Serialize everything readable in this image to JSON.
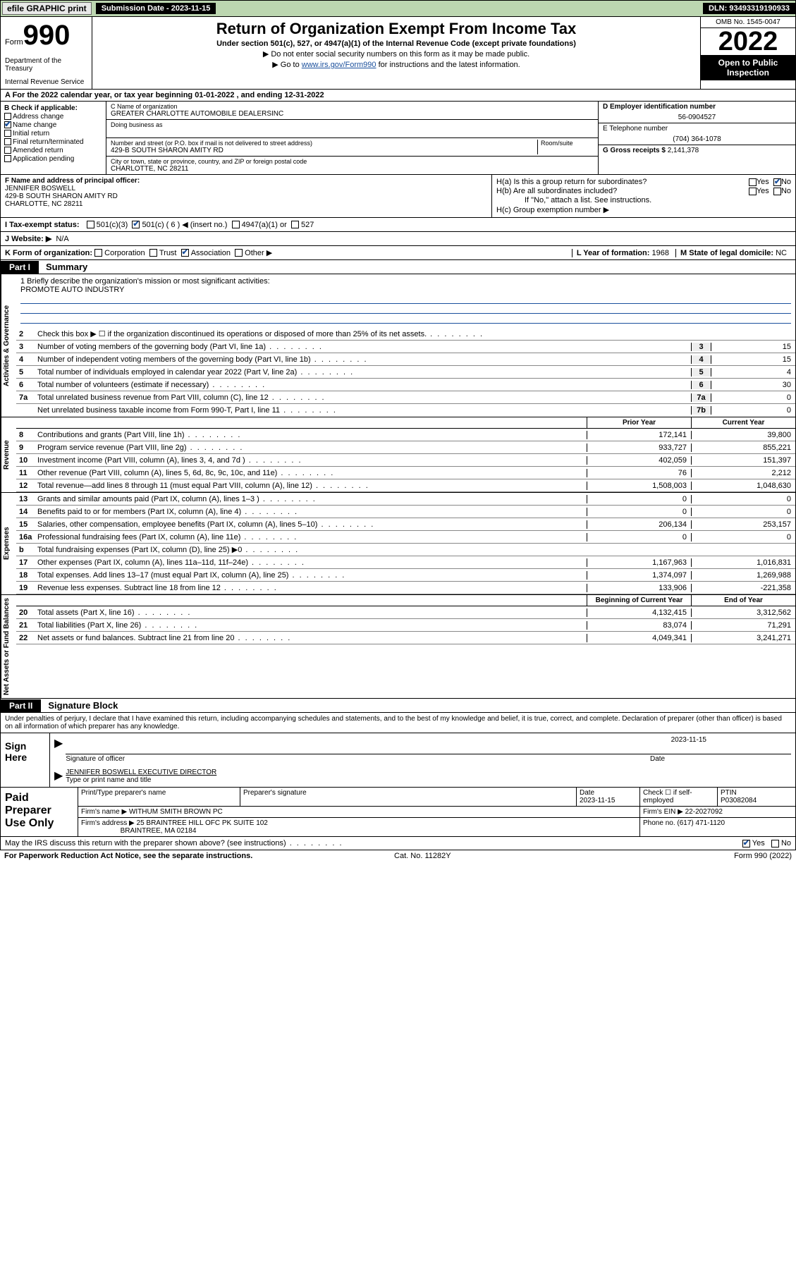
{
  "topbar": {
    "efile": "efile GRAPHIC print",
    "submission_label": "Submission Date - 2023-11-15",
    "dln": "DLN: 93493319190933"
  },
  "header": {
    "form_prefix": "Form",
    "form_num": "990",
    "dept": "Department of the Treasury",
    "irs": "Internal Revenue Service",
    "title": "Return of Organization Exempt From Income Tax",
    "sub1": "Under section 501(c), 527, or 4947(a)(1) of the Internal Revenue Code (except private foundations)",
    "sub2": "▶ Do not enter social security numbers on this form as it may be made public.",
    "sub3_pre": "▶ Go to ",
    "sub3_link": "www.irs.gov/Form990",
    "sub3_post": " for instructions and the latest information.",
    "omb": "OMB No. 1545-0047",
    "year": "2022",
    "open": "Open to Public Inspection"
  },
  "period": "A For the 2022 calendar year, or tax year beginning 01-01-2022   , and ending 12-31-2022",
  "boxB": {
    "label": "B Check if applicable:",
    "addr": "Address change",
    "name": "Name change",
    "init": "Initial return",
    "final": "Final return/terminated",
    "amend": "Amended return",
    "app": "Application pending"
  },
  "boxC": {
    "name_lbl": "C Name of organization",
    "name": "GREATER CHARLOTTE AUTOMOBILE DEALERSINC",
    "dba_lbl": "Doing business as",
    "street_lbl": "Number and street (or P.O. box if mail is not delivered to street address)",
    "room_lbl": "Room/suite",
    "street": "429-B SOUTH SHARON AMITY RD",
    "city_lbl": "City or town, state or province, country, and ZIP or foreign postal code",
    "city": "CHARLOTTE, NC  28211"
  },
  "boxD": {
    "lbl": "D Employer identification number",
    "val": "56-0904527"
  },
  "boxE": {
    "lbl": "E Telephone number",
    "val": "(704) 364-1078"
  },
  "boxG": {
    "lbl": "G Gross receipts $",
    "val": "2,141,378"
  },
  "officer": {
    "lbl": "F Name and address of principal officer:",
    "name": "JENNIFER BOSWELL",
    "addr1": "429-B SOUTH SHARON AMITY RD",
    "addr2": "CHARLOTTE, NC  28211"
  },
  "boxH": {
    "a": "H(a)  Is this a group return for subordinates?",
    "b": "H(b)  Are all subordinates included?",
    "note": "If \"No,\" attach a list. See instructions.",
    "c": "H(c)  Group exemption number ▶",
    "yes": "Yes",
    "no": "No"
  },
  "status": {
    "lbl": "I    Tax-exempt status:",
    "o1": "501(c)(3)",
    "o2": "501(c) ( 6 ) ◀ (insert no.)",
    "o3": "4947(a)(1) or",
    "o4": "527"
  },
  "website": {
    "lbl": "J   Website: ▶",
    "val": "N/A"
  },
  "orgform": {
    "lbl": "K Form of organization:",
    "corp": "Corporation",
    "trust": "Trust",
    "assoc": "Association",
    "other": "Other ▶",
    "year_lbl": "L Year of formation:",
    "year": "1968",
    "dom_lbl": "M State of legal domicile:",
    "dom": "NC"
  },
  "part1": {
    "num": "Part I",
    "title": "Summary"
  },
  "vtabs": {
    "act": "Activities & Governance",
    "rev": "Revenue",
    "exp": "Expenses",
    "net": "Net Assets or Fund Balances"
  },
  "mission": {
    "lbl": "1   Briefly describe the organization's mission or most significant activities:",
    "txt": "PROMOTE AUTO INDUSTRY"
  },
  "lines_gov": [
    {
      "n": "2",
      "d": "Check this box ▶ ☐  if the organization discontinued its operations or disposed of more than 25% of its net assets.",
      "b": "",
      "v": ""
    },
    {
      "n": "3",
      "d": "Number of voting members of the governing body (Part VI, line 1a)",
      "b": "3",
      "v": "15"
    },
    {
      "n": "4",
      "d": "Number of independent voting members of the governing body (Part VI, line 1b)",
      "b": "4",
      "v": "15"
    },
    {
      "n": "5",
      "d": "Total number of individuals employed in calendar year 2022 (Part V, line 2a)",
      "b": "5",
      "v": "4"
    },
    {
      "n": "6",
      "d": "Total number of volunteers (estimate if necessary)",
      "b": "6",
      "v": "30"
    },
    {
      "n": "7a",
      "d": "Total unrelated business revenue from Part VIII, column (C), line 12",
      "b": "7a",
      "v": "0"
    },
    {
      "n": "",
      "d": "Net unrelated business taxable income from Form 990-T, Part I, line 11",
      "b": "7b",
      "v": "0"
    }
  ],
  "col_hdr": {
    "prior": "Prior Year",
    "curr": "Current Year",
    "beg": "Beginning of Current Year",
    "end": "End of Year"
  },
  "lines_rev": [
    {
      "n": "8",
      "d": "Contributions and grants (Part VIII, line 1h)",
      "v1": "172,141",
      "v2": "39,800"
    },
    {
      "n": "9",
      "d": "Program service revenue (Part VIII, line 2g)",
      "v1": "933,727",
      "v2": "855,221"
    },
    {
      "n": "10",
      "d": "Investment income (Part VIII, column (A), lines 3, 4, and 7d )",
      "v1": "402,059",
      "v2": "151,397"
    },
    {
      "n": "11",
      "d": "Other revenue (Part VIII, column (A), lines 5, 6d, 8c, 9c, 10c, and 11e)",
      "v1": "76",
      "v2": "2,212"
    },
    {
      "n": "12",
      "d": "Total revenue—add lines 8 through 11 (must equal Part VIII, column (A), line 12)",
      "v1": "1,508,003",
      "v2": "1,048,630"
    }
  ],
  "lines_exp": [
    {
      "n": "13",
      "d": "Grants and similar amounts paid (Part IX, column (A), lines 1–3 )",
      "v1": "0",
      "v2": "0"
    },
    {
      "n": "14",
      "d": "Benefits paid to or for members (Part IX, column (A), line 4)",
      "v1": "0",
      "v2": "0"
    },
    {
      "n": "15",
      "d": "Salaries, other compensation, employee benefits (Part IX, column (A), lines 5–10)",
      "v1": "206,134",
      "v2": "253,157"
    },
    {
      "n": "16a",
      "d": "Professional fundraising fees (Part IX, column (A), line 11e)",
      "v1": "0",
      "v2": "0"
    },
    {
      "n": "b",
      "d": "Total fundraising expenses (Part IX, column (D), line 25) ▶0",
      "v1": "",
      "v2": "",
      "shade": true
    },
    {
      "n": "17",
      "d": "Other expenses (Part IX, column (A), lines 11a–11d, 11f–24e)",
      "v1": "1,167,963",
      "v2": "1,016,831"
    },
    {
      "n": "18",
      "d": "Total expenses. Add lines 13–17 (must equal Part IX, column (A), line 25)",
      "v1": "1,374,097",
      "v2": "1,269,988"
    },
    {
      "n": "19",
      "d": "Revenue less expenses. Subtract line 18 from line 12",
      "v1": "133,906",
      "v2": "-221,358"
    }
  ],
  "lines_net": [
    {
      "n": "20",
      "d": "Total assets (Part X, line 16)",
      "v1": "4,132,415",
      "v2": "3,312,562"
    },
    {
      "n": "21",
      "d": "Total liabilities (Part X, line 26)",
      "v1": "83,074",
      "v2": "71,291"
    },
    {
      "n": "22",
      "d": "Net assets or fund balances. Subtract line 21 from line 20",
      "v1": "4,049,341",
      "v2": "3,241,271"
    }
  ],
  "part2": {
    "num": "Part II",
    "title": "Signature Block"
  },
  "penalty": "Under penalties of perjury, I declare that I have examined this return, including accompanying schedules and statements, and to the best of my knowledge and belief, it is true, correct, and complete. Declaration of preparer (other than officer) is based on all information of which preparer has any knowledge.",
  "sign": {
    "here": "Sign Here",
    "sig_lbl": "Signature of officer",
    "date_lbl": "Date",
    "date": "2023-11-15",
    "name": "JENNIFER BOSWELL  EXECUTIVE DIRECTOR",
    "name_lbl": "Type or print name and title"
  },
  "prep": {
    "title": "Paid Preparer Use Only",
    "h1": "Print/Type preparer's name",
    "h2": "Preparer's signature",
    "h3": "Date",
    "h3v": "2023-11-15",
    "h4": "Check ☐ if self-employed",
    "h5": "PTIN",
    "h5v": "P03082084",
    "firm_lbl": "Firm's name    ▶",
    "firm": "WITHUM SMITH BROWN PC",
    "ein_lbl": "Firm's EIN ▶",
    "ein": "22-2027092",
    "addr_lbl": "Firm's address ▶",
    "addr1": "25 BRAINTREE HILL OFC PK SUITE 102",
    "addr2": "BRAINTREE, MA  02184",
    "ph_lbl": "Phone no.",
    "ph": "(617) 471-1120"
  },
  "discuss": {
    "q": "May the IRS discuss this return with the preparer shown above? (see instructions)",
    "yes": "Yes",
    "no": "No"
  },
  "footer": {
    "l": "For Paperwork Reduction Act Notice, see the separate instructions.",
    "m": "Cat. No. 11282Y",
    "r": "Form 990 (2022)"
  }
}
